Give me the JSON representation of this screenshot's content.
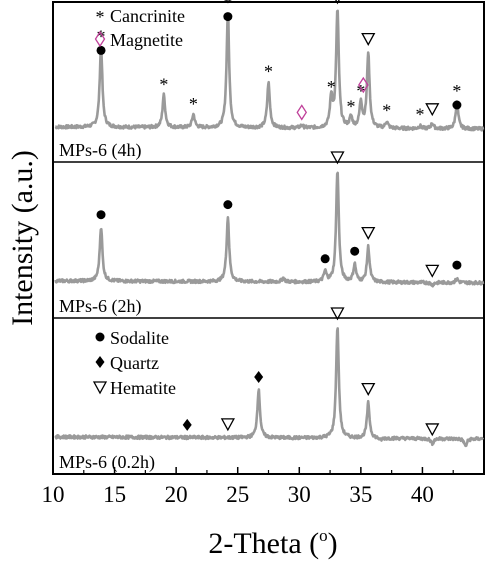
{
  "chart_data": {
    "type": "line",
    "xlabel": "2-Theta (°)",
    "xlabel_main": "2-Theta (",
    "xlabel_sup": "o",
    "xlabel_close": ")",
    "ylabel": "Intensity (a.u.)",
    "xlim": [
      10,
      45
    ],
    "xticks": [
      10,
      15,
      20,
      25,
      30,
      35,
      40
    ],
    "tick_labels": [
      "10",
      "15",
      "20",
      "25",
      "30",
      "35",
      "40"
    ],
    "line_color": "#9a9a9a",
    "panels": [
      {
        "name": "MPs-6 (4h)",
        "baseline": 0.1,
        "peaks": [
          {
            "x": 13.9,
            "y": 0.72
          },
          {
            "x": 19.0,
            "y": 0.35
          },
          {
            "x": 21.4,
            "y": 0.2
          },
          {
            "x": 24.2,
            "y": 0.98
          },
          {
            "x": 27.5,
            "y": 0.45
          },
          {
            "x": 30.2,
            "y": 0.12
          },
          {
            "x": 32.6,
            "y": 0.33
          },
          {
            "x": 33.1,
            "y": 1.0
          },
          {
            "x": 34.2,
            "y": 0.18
          },
          {
            "x": 35.0,
            "y": 0.3
          },
          {
            "x": 35.6,
            "y": 0.68
          },
          {
            "x": 37.1,
            "y": 0.15
          },
          {
            "x": 39.8,
            "y": 0.12
          },
          {
            "x": 40.8,
            "y": 0.14
          },
          {
            "x": 42.8,
            "y": 0.3
          }
        ],
        "markers": [
          {
            "x": 13.9,
            "symbol": "*",
            "over": "dot"
          },
          {
            "x": 19.0,
            "symbol": "*"
          },
          {
            "x": 21.4,
            "symbol": "*"
          },
          {
            "x": 24.2,
            "symbol": "*",
            "over": "dot"
          },
          {
            "x": 27.5,
            "symbol": "*"
          },
          {
            "x": 30.2,
            "symbol": "diamond"
          },
          {
            "x": 32.6,
            "symbol": "*"
          },
          {
            "x": 33.1,
            "symbol": "triangle"
          },
          {
            "x": 34.2,
            "symbol": "*"
          },
          {
            "x": 35.0,
            "symbol": "*"
          },
          {
            "x": 35.2,
            "symbol": "diamond"
          },
          {
            "x": 35.6,
            "symbol": "triangle"
          },
          {
            "x": 37.1,
            "symbol": "*"
          },
          {
            "x": 39.8,
            "symbol": "*"
          },
          {
            "x": 40.8,
            "symbol": "triangle"
          },
          {
            "x": 42.8,
            "symbol": "*",
            "over": "dot"
          }
        ],
        "legend": [
          {
            "symbol": "*",
            "label": "Cancrinite"
          },
          {
            "symbol": "diamond",
            "label": "Magnetite"
          }
        ]
      },
      {
        "name": "MPs-6 (2h)",
        "baseline": 0.12,
        "peaks": [
          {
            "x": 13.9,
            "y": 0.55
          },
          {
            "x": 24.2,
            "y": 0.63
          },
          {
            "x": 28.7,
            "y": 0.15
          },
          {
            "x": 32.1,
            "y": 0.2
          },
          {
            "x": 33.1,
            "y": 1.0
          },
          {
            "x": 34.5,
            "y": 0.26
          },
          {
            "x": 35.6,
            "y": 0.4
          },
          {
            "x": 36.6,
            "y": 0.12
          },
          {
            "x": 40.8,
            "y": 0.1
          },
          {
            "x": 42.8,
            "y": 0.15
          }
        ],
        "markers": [
          {
            "x": 13.9,
            "symbol": "dot"
          },
          {
            "x": 24.2,
            "symbol": "dot"
          },
          {
            "x": 32.1,
            "symbol": "dot"
          },
          {
            "x": 33.1,
            "symbol": "triangle"
          },
          {
            "x": 34.5,
            "symbol": "dot"
          },
          {
            "x": 35.6,
            "symbol": "triangle"
          },
          {
            "x": 40.8,
            "symbol": "triangle"
          },
          {
            "x": 42.8,
            "symbol": "dot"
          }
        ],
        "legend": []
      },
      {
        "name": "MPs-6 (0.2h)",
        "baseline": 0.12,
        "peaks": [
          {
            "x": 20.9,
            "y": 0.12
          },
          {
            "x": 24.2,
            "y": 0.12
          },
          {
            "x": 26.7,
            "y": 0.5
          },
          {
            "x": 33.1,
            "y": 1.0
          },
          {
            "x": 35.6,
            "y": 0.4
          },
          {
            "x": 36.6,
            "y": 0.1
          },
          {
            "x": 40.8,
            "y": 0.08
          },
          {
            "x": 43.5,
            "y": 0.06
          }
        ],
        "markers": [
          {
            "x": 20.9,
            "symbol": "diamond-filled"
          },
          {
            "x": 24.2,
            "symbol": "triangle"
          },
          {
            "x": 26.7,
            "symbol": "diamond-filled"
          },
          {
            "x": 33.1,
            "symbol": "triangle"
          },
          {
            "x": 35.6,
            "symbol": "triangle"
          },
          {
            "x": 40.8,
            "symbol": "triangle"
          }
        ],
        "legend": [
          {
            "symbol": "dot",
            "label": "Sodalite"
          },
          {
            "symbol": "diamond-filled",
            "label": "Quartz"
          },
          {
            "symbol": "triangle",
            "label": "Hematite"
          }
        ]
      }
    ]
  }
}
